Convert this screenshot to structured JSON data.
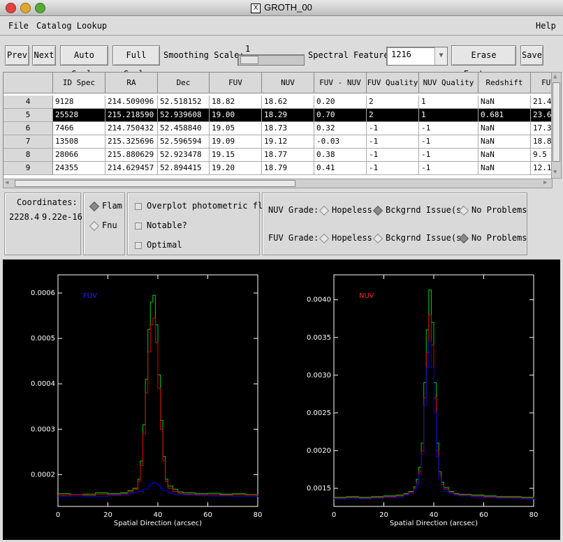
{
  "window": {
    "title": "GROTH_00"
  },
  "menu": {
    "file": "File",
    "catalog": "Catalog Lookup",
    "help": "Help"
  },
  "toolbar": {
    "prev": "Prev",
    "next": "Next",
    "auto_scale": "Auto Scale",
    "full_scale": "Full Scale",
    "smoothing_label": "Smoothing Scale:",
    "smoothing_value": "1",
    "spectral_label": "Spectral Feature:",
    "spectral_value": "1216",
    "erase": "Erase Features",
    "save": "Save"
  },
  "table": {
    "columns": [
      "ID Spec",
      "RA",
      "Dec",
      "FUV",
      "NUV",
      "FUV - NUV",
      "FUV Quality",
      "NUV Quality",
      "Redshift",
      "FUV"
    ],
    "rows": [
      {
        "n": "4",
        "cells": [
          "9128",
          "214.509096",
          "52.518152",
          "18.82",
          "18.62",
          "0.20",
          "2",
          "1",
          "NaN",
          "21.4"
        ]
      },
      {
        "n": "5",
        "cells": [
          "25528",
          "215.218590",
          "52.939608",
          "19.00",
          "18.29",
          "0.70",
          "2",
          "1",
          "0.681",
          "23.6"
        ]
      },
      {
        "n": "6",
        "cells": [
          "7466",
          "214.750432",
          "52.458840",
          "19.05",
          "18.73",
          "0.32",
          "-1",
          "-1",
          "NaN",
          "17.3"
        ]
      },
      {
        "n": "7",
        "cells": [
          "13508",
          "215.325696",
          "52.596594",
          "19.09",
          "19.12",
          "-0.03",
          "-1",
          "-1",
          "NaN",
          "18.8"
        ]
      },
      {
        "n": "8",
        "cells": [
          "28066",
          "215.880629",
          "52.923478",
          "19.15",
          "18.77",
          "0.38",
          "-1",
          "-1",
          "NaN",
          "9.5"
        ]
      },
      {
        "n": "9",
        "cells": [
          "24355",
          "214.629457",
          "52.894415",
          "19.20",
          "18.79",
          "0.41",
          "-1",
          "-1",
          "NaN",
          "12.1"
        ]
      }
    ],
    "selected_row": "5"
  },
  "coords": {
    "label": "Coordinates:",
    "x": "2228.4",
    "y": "9.22e-16"
  },
  "units": {
    "flam": "Flam",
    "fnu": "Fnu",
    "selected": "Flam"
  },
  "options": {
    "overplot": "Overplot photometric flux?",
    "notable": "Notable?",
    "optimal": "Optimal"
  },
  "grades": {
    "nuv_label": "NUV Grade:",
    "fuv_label": "FUV Grade:",
    "hopeless": "Hopeless",
    "bckgrnd": "Bckgrnd Issue(s)",
    "no_problems": "No Problems",
    "nuv_selected": "Bckgrnd Issue(s)",
    "fuv_selected": "No Problems"
  },
  "chart_data": [
    {
      "type": "line",
      "title": "FUV",
      "xlabel": "Spatial Direction (arcsec)",
      "ylabel": "",
      "xlim": [
        0,
        80
      ],
      "ylim": [
        0.00013,
        0.00064
      ],
      "xticks": [
        "0",
        "20",
        "40",
        "60",
        "80"
      ],
      "yticks": [
        "0.0002",
        "0.0003",
        "0.0004",
        "0.0005",
        "0.0006"
      ],
      "ytick_values": [
        0.0002,
        0.0003,
        0.0004,
        0.0005,
        0.0006
      ],
      "series": [
        {
          "color": "#00d000",
          "x": [
            0,
            5,
            10,
            15,
            20,
            25,
            28,
            30,
            32,
            33,
            34,
            35,
            36,
            37,
            38,
            39,
            40,
            41,
            42,
            43,
            44,
            46,
            48,
            50,
            55,
            60,
            65,
            70,
            75,
            80
          ],
          "y": [
            0.000158,
            0.000156,
            0.000157,
            0.00016,
            0.000158,
            0.00016,
            0.000165,
            0.00017,
            0.00019,
            0.00023,
            0.00031,
            0.00041,
            0.00052,
            0.00058,
            0.000595,
            0.00053,
            0.00042,
            0.00032,
            0.00024,
            0.00019,
            0.000175,
            0.000168,
            0.000162,
            0.00016,
            0.000158,
            0.000159,
            0.000157,
            0.000158,
            0.000156,
            0.000157
          ]
        },
        {
          "color": "#e00000",
          "x": [
            0,
            5,
            10,
            15,
            20,
            25,
            28,
            30,
            32,
            33,
            34,
            35,
            36,
            37,
            38,
            39,
            40,
            41,
            42,
            43,
            44,
            46,
            48,
            50,
            55,
            60,
            65,
            70,
            75,
            80
          ],
          "y": [
            0.000155,
            0.000156,
            0.000154,
            0.000157,
            0.000156,
            0.000158,
            0.000162,
            0.000168,
            0.000185,
            0.00022,
            0.00029,
            0.00038,
            0.00047,
            0.00053,
            0.000545,
            0.00049,
            0.00039,
            0.0003,
            0.00023,
            0.000185,
            0.00017,
            0.000163,
            0.000159,
            0.000157,
            0.000156,
            0.000156,
            0.000155,
            0.000156,
            0.000155,
            0.000156
          ]
        },
        {
          "color": "#0000e0",
          "x": [
            0,
            5,
            10,
            15,
            20,
            25,
            28,
            30,
            32,
            34,
            36,
            37,
            38,
            39,
            40,
            41,
            42,
            44,
            46,
            50,
            55,
            60,
            65,
            70,
            75,
            80
          ],
          "y": [
            0.000152,
            0.000153,
            0.000151,
            0.000152,
            0.000154,
            0.000155,
            0.000158,
            0.00016,
            0.000163,
            0.000168,
            0.000175,
            0.00018,
            0.000183,
            0.00018,
            0.000176,
            0.00017,
            0.000165,
            0.00016,
            0.000157,
            0.000155,
            0.000154,
            0.000153,
            0.000153,
            0.000152,
            0.000152,
            0.000153
          ]
        }
      ]
    },
    {
      "type": "line",
      "title": "NUV",
      "xlabel": "Spatial Direction (arcsec)",
      "ylabel": "",
      "xlim": [
        0,
        80
      ],
      "ylim": [
        0.00126,
        0.00433
      ],
      "xticks": [
        "0",
        "20",
        "40",
        "60",
        "80"
      ],
      "yticks": [
        "0.0015",
        "0.0020",
        "0.0025",
        "0.0030",
        "0.0035",
        "0.0040"
      ],
      "ytick_values": [
        0.0015,
        0.002,
        0.0025,
        0.003,
        0.0035,
        0.004
      ],
      "series": [
        {
          "color": "#00d000",
          "x": [
            0,
            5,
            10,
            15,
            20,
            25,
            28,
            30,
            32,
            33,
            34,
            35,
            36,
            37,
            38,
            39,
            40,
            41,
            42,
            43,
            44,
            46,
            48,
            50,
            55,
            60,
            65,
            70,
            75,
            80
          ],
          "y": [
            0.00138,
            0.00139,
            0.00138,
            0.00139,
            0.0014,
            0.00141,
            0.00143,
            0.00146,
            0.00152,
            0.00162,
            0.00178,
            0.0021,
            0.0029,
            0.0036,
            0.00413,
            0.0037,
            0.0029,
            0.0021,
            0.00172,
            0.00158,
            0.00151,
            0.00146,
            0.00143,
            0.00142,
            0.00141,
            0.0014,
            0.00139,
            0.00139,
            0.00138,
            0.00139
          ]
        },
        {
          "color": "#e00000",
          "x": [
            0,
            5,
            10,
            15,
            20,
            25,
            28,
            30,
            32,
            33,
            34,
            35,
            36,
            37,
            38,
            39,
            40,
            41,
            42,
            43,
            44,
            46,
            48,
            50,
            55,
            60,
            65,
            70,
            75,
            80
          ],
          "y": [
            0.00137,
            0.00138,
            0.00137,
            0.00138,
            0.00139,
            0.0014,
            0.00142,
            0.00145,
            0.0015,
            0.00158,
            0.00172,
            0.002,
            0.0027,
            0.0033,
            0.0038,
            0.0034,
            0.0027,
            0.002,
            0.00168,
            0.00155,
            0.00149,
            0.00145,
            0.00142,
            0.00141,
            0.0014,
            0.00139,
            0.00138,
            0.00138,
            0.00137,
            0.00138
          ]
        },
        {
          "color": "#0000e0",
          "x": [
            0,
            5,
            10,
            15,
            20,
            25,
            28,
            30,
            32,
            33,
            34,
            35,
            36,
            37,
            38,
            39,
            40,
            41,
            42,
            43,
            44,
            46,
            48,
            50,
            55,
            60,
            65,
            70,
            75,
            80
          ],
          "y": [
            0.00136,
            0.00137,
            0.00136,
            0.00137,
            0.00138,
            0.00139,
            0.00141,
            0.00143,
            0.00148,
            0.00155,
            0.00168,
            0.00195,
            0.0026,
            0.0031,
            0.00345,
            0.0031,
            0.0025,
            0.00192,
            0.00163,
            0.00151,
            0.00146,
            0.00143,
            0.00141,
            0.0014,
            0.00139,
            0.00138,
            0.00137,
            0.00137,
            0.00136,
            0.00137
          ]
        }
      ]
    }
  ]
}
